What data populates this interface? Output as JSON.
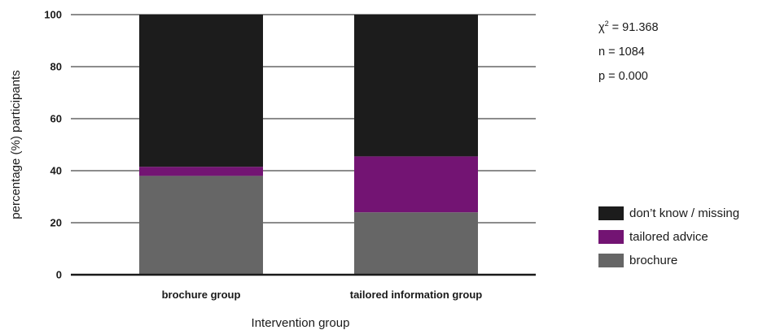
{
  "chart_data": {
    "type": "bar",
    "stacked": true,
    "categories": [
      "brochure group",
      "tailored information group"
    ],
    "series": [
      {
        "name": "brochure",
        "color": "#666666",
        "values": [
          38,
          24
        ]
      },
      {
        "name": "tailored advice",
        "color": "#731473",
        "values": [
          3.5,
          21.5
        ]
      },
      {
        "name": "don’t know / missing",
        "color": "#1c1c1c",
        "values": [
          58.5,
          54.5
        ]
      }
    ],
    "xlabel": "Intervention group",
    "ylabel": "percentage (%) participants",
    "ylim": [
      0,
      100
    ],
    "yticks": [
      0,
      20,
      40,
      60,
      80,
      100
    ],
    "grid": true,
    "legend_position": "right",
    "legend_order": [
      "don’t know / missing",
      "tailored advice",
      "brochure"
    ]
  },
  "stats": {
    "chi_symbol": "χ",
    "chi_superscript": "2",
    "chi_value": " = 91.368",
    "n": "n = 1084",
    "p": "p = 0.000"
  }
}
